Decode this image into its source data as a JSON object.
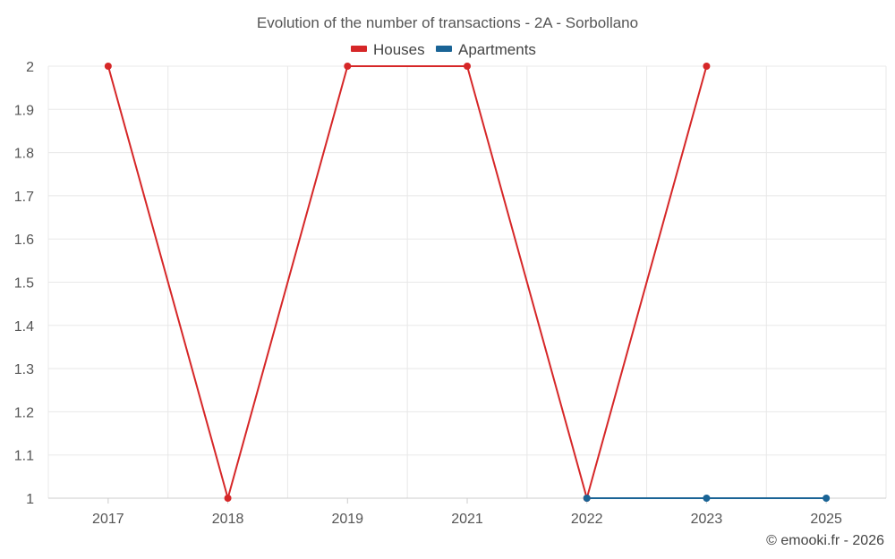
{
  "chart_data": {
    "type": "line",
    "title": "Evolution of the number of transactions - 2A - Sorbollano",
    "categories": [
      "2017",
      "2018",
      "2019",
      "2021",
      "2022",
      "2023",
      "2025"
    ],
    "yticks": [
      "1",
      "1.1",
      "1.2",
      "1.3",
      "1.4",
      "1.5",
      "1.6",
      "1.7",
      "1.8",
      "1.9",
      "2"
    ],
    "ylim": [
      1,
      2
    ],
    "xlabel": "",
    "ylabel": "",
    "legend_position": "top-center",
    "grid": true,
    "series": [
      {
        "name": "Houses",
        "color": "#d62728",
        "values": [
          2,
          1,
          2,
          2,
          1,
          2,
          null
        ]
      },
      {
        "name": "Apartments",
        "color": "#1a6496",
        "values": [
          null,
          null,
          null,
          null,
          1,
          1,
          1
        ]
      }
    ]
  },
  "credit": "© emooki.fr - 2026"
}
